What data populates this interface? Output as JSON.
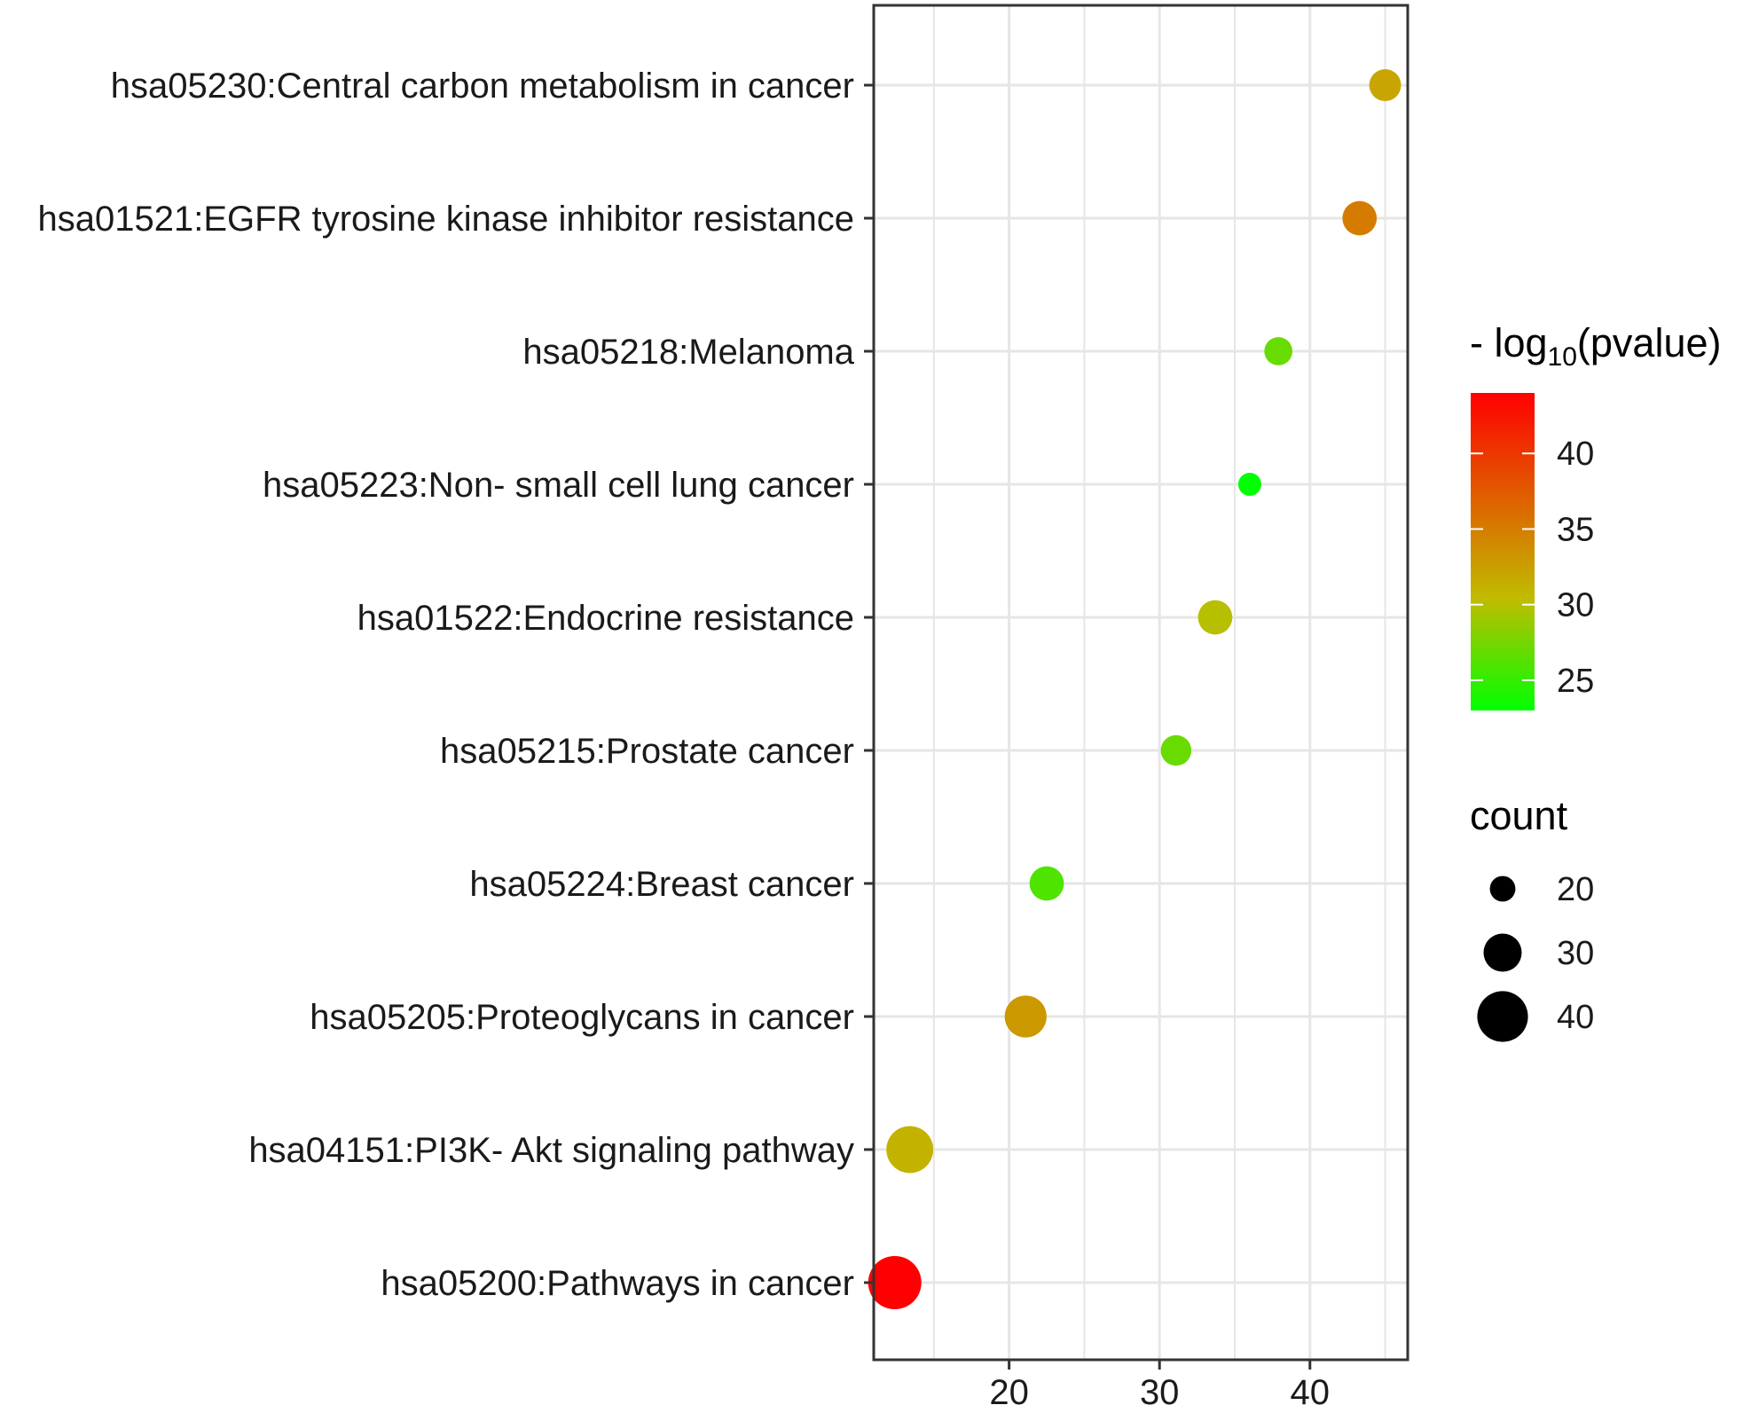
{
  "chart_data": {
    "type": "scatter",
    "title": "",
    "xlabel": "",
    "ylabel": "",
    "xlim": [
      11,
      46.5
    ],
    "x_ticks": [
      20,
      30,
      40
    ],
    "x_gridlines": [
      15,
      20,
      25,
      30,
      35,
      40,
      45
    ],
    "grid": true,
    "legend_position": "right",
    "categories": [
      "hsa05230:Central carbon metabolism in cancer",
      "hsa01521:EGFR tyrosine kinase inhibitor resistance",
      "hsa05218:Melanoma",
      "hsa05223:Non- small cell lung cancer",
      "hsa01522:Endocrine resistance",
      "hsa05215:Prostate cancer",
      "hsa05224:Breast cancer",
      "hsa05205:Proteoglycans in cancer",
      "hsa04151:PI3K- Akt signaling pathway",
      "hsa05200:Pathways in cancer"
    ],
    "points": [
      {
        "category": "hsa05230:Central carbon metabolism in cancer",
        "x": 45.0,
        "count": 25,
        "neg_log10_pvalue": 32
      },
      {
        "category": "hsa01521:EGFR tyrosine kinase inhibitor resistance",
        "x": 43.3,
        "count": 27,
        "neg_log10_pvalue": 35
      },
      {
        "category": "hsa05218:Melanoma",
        "x": 37.9,
        "count": 22,
        "neg_log10_pvalue": 27
      },
      {
        "category": "hsa05223:Non- small cell lung cancer",
        "x": 36.0,
        "count": 18,
        "neg_log10_pvalue": 23
      },
      {
        "category": "hsa01522:Endocrine resistance",
        "x": 33.7,
        "count": 27,
        "neg_log10_pvalue": 30
      },
      {
        "category": "hsa05215:Prostate cancer",
        "x": 31.1,
        "count": 24,
        "neg_log10_pvalue": 27
      },
      {
        "category": "hsa05224:Breast cancer",
        "x": 22.5,
        "count": 27,
        "neg_log10_pvalue": 26
      },
      {
        "category": "hsa05205:Proteoglycans in cancer",
        "x": 21.1,
        "count": 33,
        "neg_log10_pvalue": 33
      },
      {
        "category": "hsa04151:PI3K- Akt signaling pathway",
        "x": 13.4,
        "count": 37,
        "neg_log10_pvalue": 31
      },
      {
        "category": "hsa05200:Pathways in cancer",
        "x": 12.4,
        "count": 42,
        "neg_log10_pvalue": 44
      }
    ],
    "color_legend": {
      "title_prefix": "- log",
      "title_subscript": "10",
      "title_suffix": "(pvalue)",
      "range": [
        23,
        44
      ],
      "ticks": [
        25,
        30,
        35,
        40
      ],
      "low_color": "#00ff00",
      "mid_color": "#c0bc00",
      "high_color": "#ff0000"
    },
    "size_legend": {
      "title": "count",
      "values": [
        20,
        30,
        40
      ],
      "range": [
        18,
        42
      ],
      "color": "#000000"
    }
  }
}
